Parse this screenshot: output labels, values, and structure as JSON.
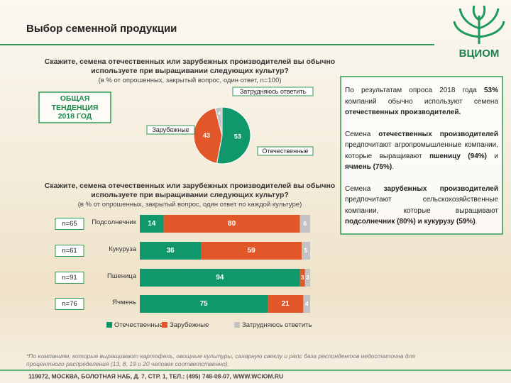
{
  "header": {
    "title": "Выбор семенной продукции",
    "logo": "ВЦИОМ"
  },
  "trend_box": [
    "ОБЩАЯ",
    "ТЕНДЕНЦИЯ",
    "2018 ГОД"
  ],
  "chart_data": [
    {
      "type": "pie",
      "title": "Скажите, семена отечественных или зарубежных производителей вы обычно используете при выращивании следующих культур?",
      "subtitle": "(в % от опрошенных, закрытый вопрос, один ответ, n=100)",
      "categories": [
        "Отечественные",
        "Зарубежные",
        "Затрудняюсь ответить"
      ],
      "values": [
        53,
        43,
        4
      ],
      "colors": [
        "#10986c",
        "#e2572a",
        "#c2c2c2"
      ]
    },
    {
      "type": "bar",
      "orientation": "horizontal",
      "stacked": true,
      "title": "Скажите, семена отечественных или зарубежных производителей вы обычно используете при выращивании следующих культур?",
      "subtitle": "(в % от опрошенных, закрытый вопрос, один ответ по каждой культуре)",
      "categories": [
        "Подсолнечник",
        "Кукуруза",
        "Пшеница",
        "Ячмень"
      ],
      "annotations": [
        "n=65",
        "n=61",
        "n=91",
        "n=76"
      ],
      "xlim": [
        0,
        100
      ],
      "series": [
        {
          "name": "Отечественные",
          "color": "#10986c",
          "values": [
            14,
            36,
            94,
            75
          ]
        },
        {
          "name": "Зарубежные",
          "color": "#e2572a",
          "values": [
            80,
            59,
            3,
            21
          ]
        },
        {
          "name": "Затрудняюсь ответить",
          "color": "#c2c2c2",
          "values": [
            6,
            5,
            3,
            4
          ]
        }
      ]
    }
  ],
  "text_box": [
    [
      {
        "text": "По результатам опроса 2018 года ",
        "bold": false
      },
      {
        "text": "53%",
        "bold": true
      },
      {
        "text": " компаний обычно используют семена ",
        "bold": false
      },
      {
        "text": "отечественных производителей.",
        "bold": true
      }
    ],
    [
      {
        "text": "Семена ",
        "bold": false
      },
      {
        "text": "отечественных производителей",
        "bold": true
      },
      {
        "text": " предпочитают агропромышленные компании, которые выращивают ",
        "bold": false
      },
      {
        "text": "пшеницу (94%)",
        "bold": true
      },
      {
        "text": " и ",
        "bold": false
      },
      {
        "text": "ячмень (75%)",
        "bold": true
      },
      {
        "text": ".",
        "bold": false
      }
    ],
    [
      {
        "text": "Семена ",
        "bold": false
      },
      {
        "text": "зарубежных производителей",
        "bold": true
      },
      {
        "text": " предпочитают сельскохозяйственные компании, которые выращивают ",
        "bold": false
      },
      {
        "text": "подсолнечник (80%) и кукурузу (59%)",
        "bold": true
      },
      {
        "text": ".",
        "bold": false
      }
    ]
  ],
  "footnote": "*По компаниям, которые выращивают картофель, овощные культуры, сахарную свеклу и рапс база респондентов недостаточна для процентного распределения (13, 8, 19 и 20 человек соответственно).",
  "footer": "119072, МОСКВА, БОЛОТНАЯ НАБ, Д. 7, СТР. 1, ТЕЛ.: (495) 748-08-07, WWW.WCIOM.RU"
}
